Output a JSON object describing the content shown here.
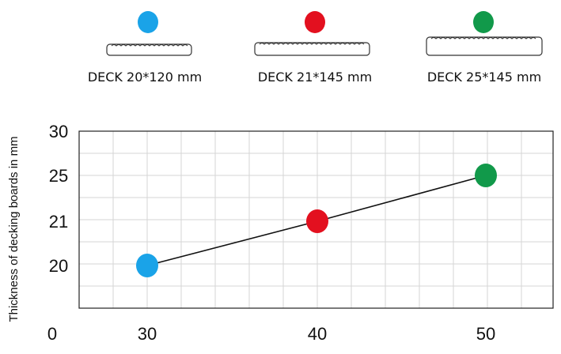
{
  "chart_data": {
    "type": "line",
    "title": "",
    "xlabel": "",
    "ylabel": "Thickness of decking boards in mm",
    "x": [
      30,
      40,
      50
    ],
    "series": [
      {
        "values": [
          20,
          21,
          25
        ]
      }
    ],
    "point_colors": [
      "#1aa3e8",
      "#e3101f",
      "#11994a"
    ],
    "line_color": "#111111",
    "x_ticks": [
      "0",
      "30",
      "40",
      "50"
    ],
    "y_ticks": [
      "20",
      "21",
      "25",
      "30"
    ],
    "grid": true,
    "legend": {
      "placement": "top",
      "items": [
        {
          "label": "DECK 20*120 mm",
          "color": "#1aa3e8"
        },
        {
          "label": "DECK 21*145 mm",
          "color": "#e3101f"
        },
        {
          "label": "DECK 25*145 mm",
          "color": "#11994a"
        }
      ]
    }
  }
}
